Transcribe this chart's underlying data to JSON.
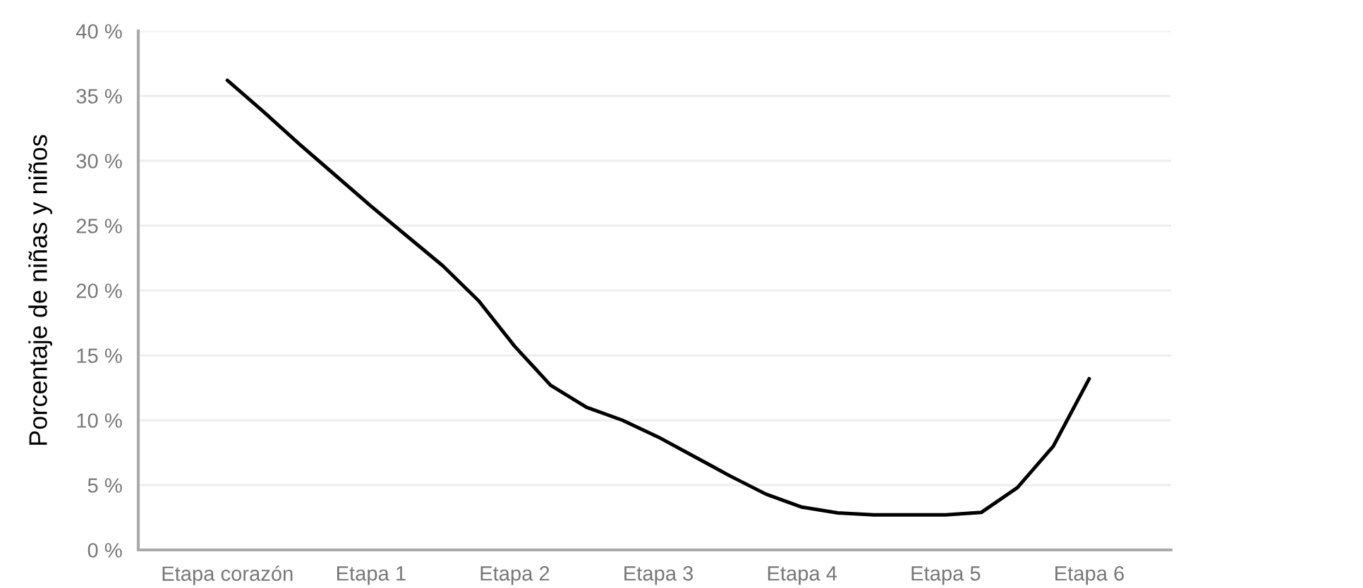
{
  "chart_data": {
    "type": "line",
    "ylabel": "Porcentaje de niñas y niños",
    "categories": [
      "Etapa corazón",
      null,
      null,
      null,
      "Etapa 1",
      null,
      null,
      null,
      "Etapa 2",
      null,
      null,
      null,
      "Etapa 3",
      null,
      null,
      null,
      "Etapa 4",
      null,
      null,
      null,
      "Etapa 5",
      null,
      null,
      null,
      "Etapa 6"
    ],
    "series": [
      {
        "color": "#000000",
        "values": [
          36.2,
          33.8,
          31.3,
          28.9,
          26.5,
          24.2,
          21.9,
          19.2,
          15.7,
          12.7,
          11.0,
          10.0,
          8.7,
          7.2,
          5.7,
          4.3,
          3.3,
          2.85,
          2.7,
          2.7,
          2.7,
          2.9,
          4.8,
          8.0,
          13.2
        ]
      }
    ],
    "ylim": [
      0,
      40
    ],
    "yticks": [
      {
        "value": 0,
        "label": "0 %"
      },
      {
        "value": 5,
        "label": "5 %"
      },
      {
        "value": 10,
        "label": "10 %"
      },
      {
        "value": 15,
        "label": "15 %"
      },
      {
        "value": 20,
        "label": "20 %"
      },
      {
        "value": 25,
        "label": "25 %"
      },
      {
        "value": 30,
        "label": "30 %"
      },
      {
        "value": 35,
        "label": "35 %"
      },
      {
        "value": 40,
        "label": "40 %"
      }
    ],
    "grid": "y",
    "marker": "none",
    "line_style": "solid"
  }
}
